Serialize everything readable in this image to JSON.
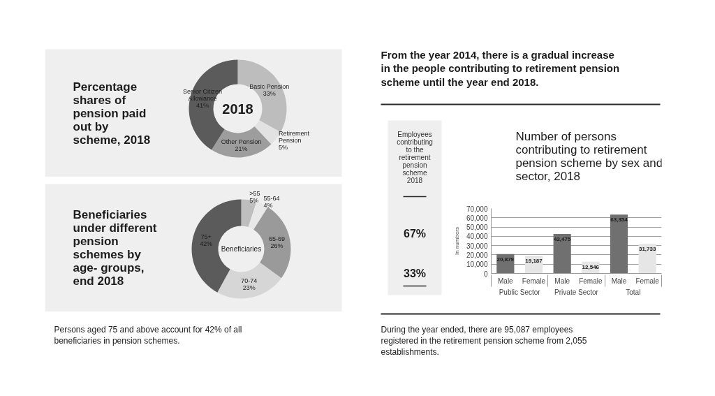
{
  "chart_data": [
    {
      "type": "donut",
      "title": "Percentage shares of pension paid out by scheme, 2018",
      "categories": [
        "Basic Pension",
        "Retirement Pension",
        "Other Pension",
        "Senior Citizen Allowance"
      ],
      "values": [
        33,
        5,
        21,
        41
      ],
      "colors": [
        "#bdbdbd",
        "#e2e2e2",
        "#9d9d9d",
        "#5b5b5b"
      ],
      "value_labels": [
        "33%",
        "5%",
        "21%",
        "41%"
      ],
      "annotations": [
        "2018"
      ]
    },
    {
      "type": "donut",
      "title": "Beneficiaries under different pension schemes by age- groups, end 2018",
      "categories": [
        ">55",
        "55-64",
        "65-69",
        "70-74",
        "75+"
      ],
      "values": [
        5,
        4,
        26,
        23,
        42
      ],
      "colors": [
        "#bebebe",
        "#e8e8e8",
        "#9a9a9a",
        "#d6d6d6",
        "#5b5b5b"
      ],
      "value_labels": [
        "5%",
        "4%",
        "26%",
        "23%",
        "42%"
      ],
      "annotations": [
        "Beneficiaries",
        "Persons aged 75 and above account for 42% of all beneficiaries in pension schemes."
      ]
    },
    {
      "type": "other",
      "title": "From the year 2014, there is a gradual increase in the people contributing to retirement pension scheme until the year end 2018."
    },
    {
      "type": "other",
      "title": "Employees contributing to the retirement pension scheme 2018",
      "annotations": [
        "67%",
        "33%"
      ]
    },
    {
      "type": "bar",
      "title": "Number of persons contributing to retirement pension scheme by sex and sector, 2018",
      "ylabel": "In numbers",
      "categories": [
        "Public Sector",
        "Private Sector",
        "Total"
      ],
      "series": [
        {
          "name": "Male",
          "color": "#707070",
          "values": [
            20879,
            42475,
            63354
          ],
          "value_labels": [
            "20,879",
            "42,475",
            "63,354"
          ]
        },
        {
          "name": "Female",
          "color": "#e6e6e6",
          "values": [
            19187,
            12546,
            31733
          ],
          "value_labels": [
            "19,187",
            "12,546",
            "31,733"
          ]
        }
      ],
      "ylim": [
        0,
        70000
      ],
      "yticks": [
        0,
        {
          "value": 10000,
          "label": "10,000"
        },
        {
          "value": 20000,
          "label": "20,000"
        },
        {
          "value": 30000,
          "label": "30,000"
        },
        {
          "value": 40000,
          "label": "40,000"
        },
        {
          "value": 50000,
          "label": "50,000"
        },
        {
          "value": 60000,
          "label": "60,000"
        },
        {
          "value": 70000,
          "label": "70,000"
        }
      ],
      "grid": "y",
      "annotations": [
        "During the year ended, there are 95,087 employees registered in the retirement pension scheme from 2,055 establishments."
      ]
    }
  ]
}
